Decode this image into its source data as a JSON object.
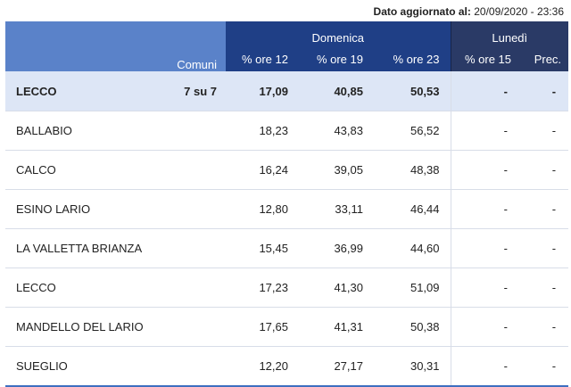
{
  "update": {
    "label": "Dato aggiornato al:",
    "value": "20/09/2020 - 23:36"
  },
  "header": {
    "comuni": "Comuni",
    "domenica": "Domenica",
    "lunedi": "Lunedì",
    "ore12": "% ore 12",
    "ore19": "% ore 19",
    "ore23": "% ore 23",
    "ore15": "% ore 15",
    "prec": "Prec."
  },
  "total": {
    "name": "LECCO",
    "comuni": "7 su 7",
    "ore12": "17,09",
    "ore19": "40,85",
    "ore23": "50,53",
    "ore15": "-",
    "prec": "-"
  },
  "rows": [
    {
      "name": "BALLABIO",
      "ore12": "18,23",
      "ore19": "43,83",
      "ore23": "56,52",
      "ore15": "-",
      "prec": "-"
    },
    {
      "name": "CALCO",
      "ore12": "16,24",
      "ore19": "39,05",
      "ore23": "48,38",
      "ore15": "-",
      "prec": "-"
    },
    {
      "name": "ESINO LARIO",
      "ore12": "12,80",
      "ore19": "33,11",
      "ore23": "46,44",
      "ore15": "-",
      "prec": "-"
    },
    {
      "name": "LA VALLETTA BRIANZA",
      "ore12": "15,45",
      "ore19": "36,99",
      "ore23": "44,60",
      "ore15": "-",
      "prec": "-"
    },
    {
      "name": "LECCO",
      "ore12": "17,23",
      "ore19": "41,30",
      "ore23": "51,09",
      "ore15": "-",
      "prec": "-"
    },
    {
      "name": "MANDELLO DEL LARIO",
      "ore12": "17,65",
      "ore19": "41,31",
      "ore23": "50,38",
      "ore15": "-",
      "prec": "-"
    },
    {
      "name": "SUEGLIO",
      "ore12": "12,20",
      "ore19": "27,17",
      "ore23": "30,31",
      "ore15": "-",
      "prec": "-"
    }
  ]
}
